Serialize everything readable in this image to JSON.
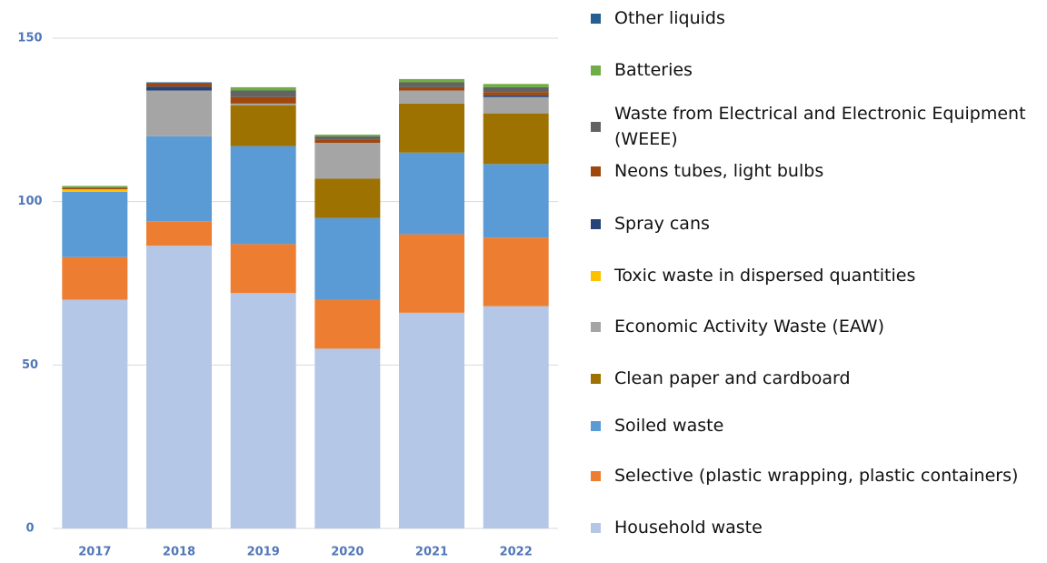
{
  "chart_data": {
    "type": "stacked_bar",
    "categories": [
      "2017",
      "2018",
      "2019",
      "2020",
      "2021",
      "2022"
    ],
    "ylim": [
      0,
      150
    ],
    "yticks": [
      0,
      50,
      100,
      150
    ],
    "grid": true,
    "series": [
      {
        "name": "Household waste",
        "color": "#b4c7e7",
        "values": [
          70,
          86.5,
          72,
          55,
          66,
          68
        ]
      },
      {
        "name": "Selective (plastic wrapping, plastic containers)",
        "color": "#ed7d31",
        "values": [
          13,
          7.5,
          15,
          15,
          24,
          21
        ]
      },
      {
        "name": "Soiled waste",
        "color": "#5b9bd5",
        "values": [
          20,
          26,
          30,
          25,
          25,
          22.5
        ]
      },
      {
        "name": "Clean paper and cardboard",
        "color": "#9e7200",
        "values": [
          0,
          0,
          12.5,
          12,
          15,
          15.5
        ]
      },
      {
        "name": "Economic Activity Waste (EAW)",
        "color": "#a5a5a5",
        "values": [
          0,
          14,
          0.5,
          11,
          4,
          5
        ]
      },
      {
        "name": "Toxic waste in dispersed quantities",
        "color": "#ffc000",
        "values": [
          0.8,
          0,
          0,
          0,
          0,
          0
        ]
      },
      {
        "name": "Spray cans",
        "color": "#264478",
        "values": [
          0,
          1.2,
          0,
          0,
          0,
          0.5
        ]
      },
      {
        "name": "Neons tubes, light bulbs",
        "color": "#9e480e",
        "values": [
          0.5,
          1,
          2,
          1,
          1,
          1
        ]
      },
      {
        "name": "Waste from Electrical and Electronic Equipment (WEEE)",
        "color": "#636363",
        "values": [
          0,
          0,
          2,
          1,
          1.5,
          1.5
        ]
      },
      {
        "name": "Batteries",
        "color": "#70ad47",
        "values": [
          0.5,
          0,
          1,
          0.5,
          1,
          1
        ]
      },
      {
        "name": "Other liquids",
        "color": "#255e91",
        "values": [
          0,
          0.3,
          0,
          0,
          0,
          0
        ]
      }
    ]
  }
}
